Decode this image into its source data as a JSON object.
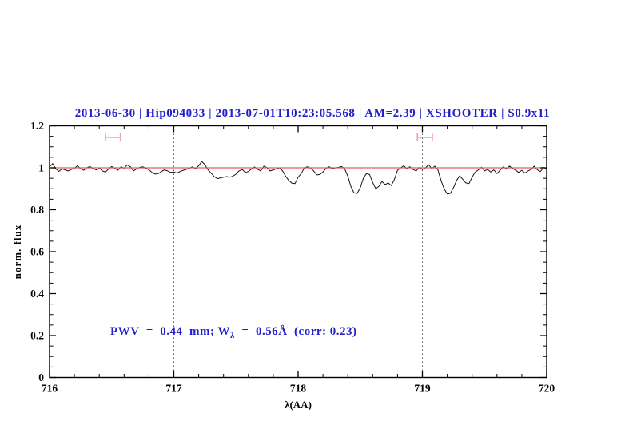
{
  "colors": {
    "accent_blue": "#2020cc",
    "spectrum_black": "#151515",
    "reference_red": "#dd6262",
    "marker_red": "#f2a2a2",
    "dotted_gray": "#555555",
    "frame_black": "#000000"
  },
  "header": {
    "title_segments": [
      "2013-06-30",
      "Hip094033",
      "2013-07-01T10:23:05.568",
      "AM=2.39",
      "XSHOOTER",
      "S0.9x11"
    ],
    "separator": " | "
  },
  "annotation": {
    "prefix": "PWV  =  0.44  mm; W",
    "sub": "λ",
    "suffix": "  =  0.56Å  (corr: 0.23)"
  },
  "chart_data": {
    "type": "line",
    "title": "2013-06-30 | Hip094033 | 2013-07-01T10:23:05.568 | AM=2.39 | XSHOOTER | S0.9x11",
    "xlabel": "λ(AA)",
    "ylabel": "norm. flux",
    "x_range": [
      716,
      720
    ],
    "y_range": [
      0,
      1.2
    ],
    "x_tick_labels": [
      "716",
      "717",
      "718",
      "719",
      "720"
    ],
    "y_tick_labels": [
      "0",
      "0.2",
      "0.4",
      "0.6",
      "0.8",
      "1",
      "1.2"
    ],
    "x_major_step": 1,
    "x_minor_step": 0.2,
    "y_major_step": 0.2,
    "y_minor_step": 0.05,
    "grid": "off",
    "legend": "none",
    "reference_line_y": 1.0,
    "dotted_vlines": [
      717,
      719
    ],
    "range_markers": [
      {
        "x_start": 716.45,
        "x_end": 716.57,
        "y": 1.145
      },
      {
        "x_start": 718.96,
        "x_end": 719.08,
        "y": 1.145
      }
    ],
    "series": [
      {
        "name": "normalized spectrum",
        "lambda_start": 716.0,
        "lambda_step": 0.025,
        "flux": [
          1.005,
          1.02,
          0.995,
          0.983,
          0.995,
          0.99,
          0.985,
          0.992,
          0.998,
          1.01,
          0.995,
          0.988,
          1.0,
          1.006,
          0.997,
          0.99,
          1.0,
          0.985,
          0.98,
          0.995,
          1.006,
          0.998,
          0.988,
          1.005,
          0.998,
          1.014,
          1.005,
          0.985,
          0.995,
          1.002,
          1.005,
          0.998,
          0.99,
          0.978,
          0.97,
          0.972,
          0.982,
          0.99,
          0.985,
          0.978,
          0.98,
          0.975,
          0.982,
          0.988,
          0.992,
          0.998,
          1.004,
          0.996,
          1.01,
          1.03,
          1.015,
          0.99,
          0.975,
          0.958,
          0.948,
          0.952,
          0.955,
          0.958,
          0.955,
          0.96,
          0.97,
          0.985,
          0.992,
          0.978,
          0.982,
          0.995,
          1.004,
          0.992,
          0.985,
          1.008,
          1.0,
          0.985,
          0.99,
          0.995,
          1.0,
          0.985,
          0.96,
          0.94,
          0.927,
          0.925,
          0.955,
          0.972,
          1.0,
          1.005,
          0.998,
          0.985,
          0.966,
          0.968,
          0.98,
          0.998,
          1.005,
          0.995,
          1.0,
          1.002,
          1.006,
          0.995,
          0.96,
          0.91,
          0.88,
          0.878,
          0.905,
          0.95,
          0.972,
          0.968,
          0.93,
          0.9,
          0.912,
          0.935,
          0.92,
          0.928,
          0.915,
          0.945,
          0.988,
          1.0,
          1.01,
          0.995,
          1.005,
          0.992,
          0.985,
          1.002,
          0.992,
          1.0,
          1.014,
          0.996,
          1.008,
          0.99,
          0.94,
          0.9,
          0.875,
          0.878,
          0.905,
          0.94,
          0.962,
          0.945,
          0.928,
          0.925,
          0.955,
          0.98,
          0.99,
          1.003,
          0.985,
          0.992,
          0.98,
          0.99,
          0.972,
          0.988,
          1.004,
          0.996,
          1.008,
          0.998,
          0.988,
          0.978,
          0.988,
          0.975,
          0.985,
          0.992,
          1.008,
          0.99,
          0.982,
          1.002,
          0.995
        ]
      }
    ]
  }
}
